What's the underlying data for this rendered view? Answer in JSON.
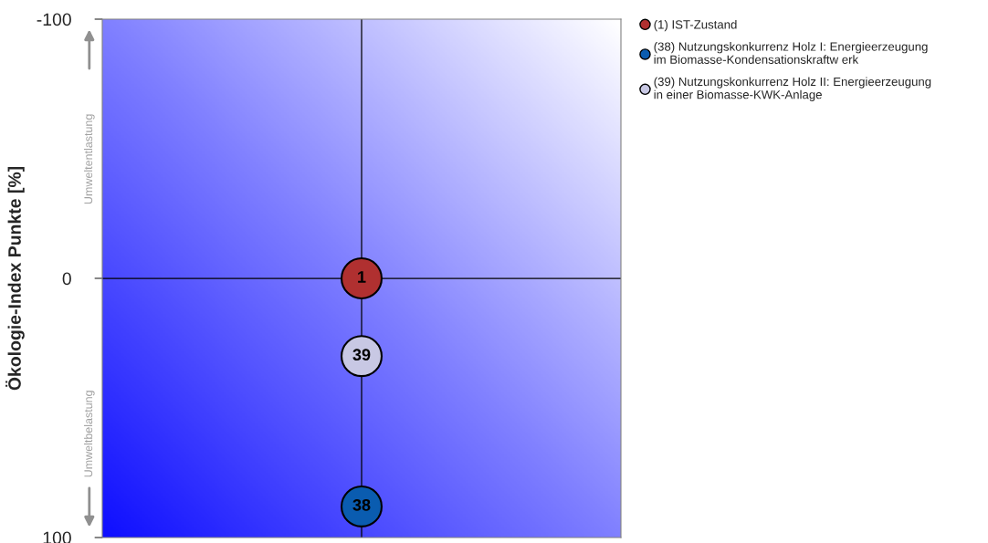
{
  "chart_data": {
    "type": "scatter",
    "ylabel": "Ökologie-Index Punkte [%]",
    "categories": [
      null
    ],
    "series": [
      {
        "name": "(1) IST-Zustand",
        "color": "#b03030",
        "values": [
          0
        ]
      },
      {
        "name": "(38) Nutzungskonkurrenz Holz I: Energieerzeugung\nim Biomasse-Kondensationskraftw erk",
        "color": "#0a5cb0",
        "values": [
          88
        ]
      },
      {
        "name": "(39) Nutzungskonkurrenz Holz II: Energieerzeugung\nin einer Biomasse-KWK-Anlage",
        "color": "#c8c8e4",
        "values": [
          30
        ]
      }
    ],
    "annotations": [
      {
        "text": "1",
        "y": 0
      },
      {
        "text": "38",
        "y": 88
      },
      {
        "text": "39",
        "y": 30
      },
      "Umweltentlastung",
      "Umweltbelastung"
    ],
    "ylim": [
      100,
      -100
    ],
    "yticks": [
      -100,
      0,
      100
    ],
    "ref_lines": [
      {
        "axis": "y",
        "value": 0,
        "color": "#000000"
      }
    ],
    "tick_labels": "y",
    "marker": "circle",
    "legend": "top right",
    "grid": false
  }
}
